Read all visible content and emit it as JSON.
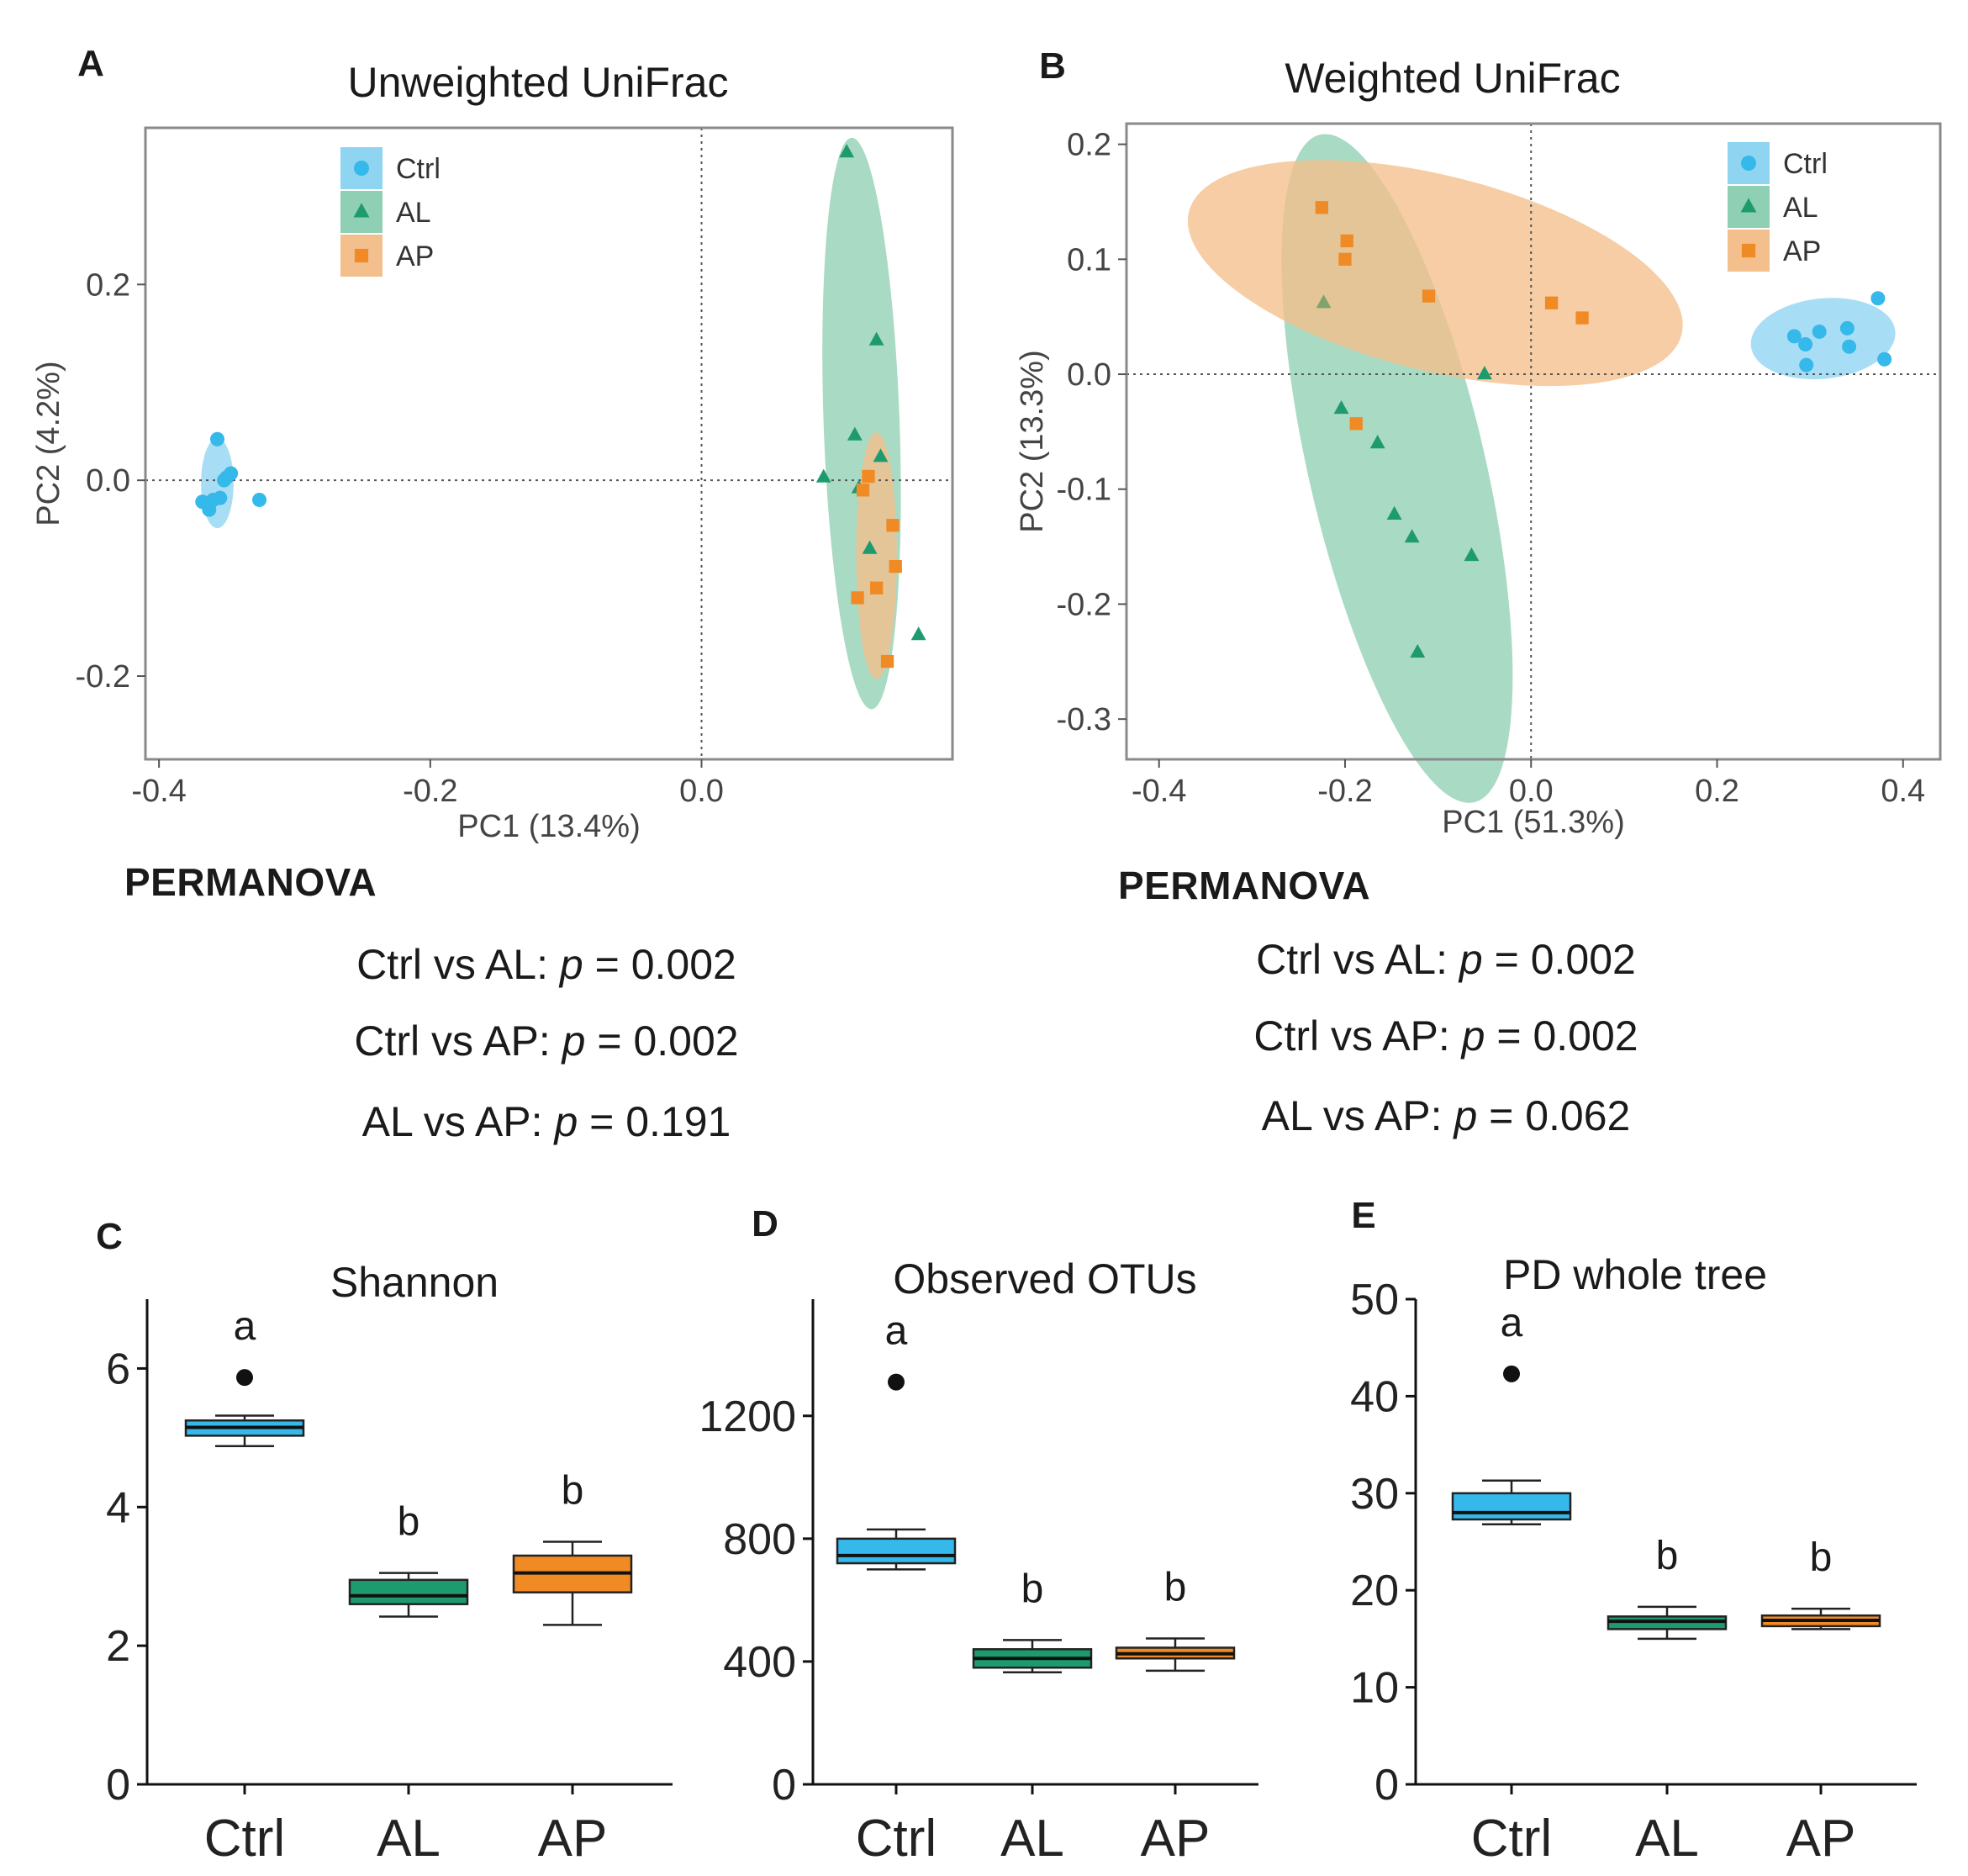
{
  "colors": {
    "ctrl": "#35b8ea",
    "al": "#1e9b6e",
    "ap": "#f08a24",
    "ctrl_fill": "#8fd5f2",
    "al_fill": "#8fcfb4",
    "ap_fill": "#f3bf8c"
  },
  "chart_data": [
    {
      "panel": "A",
      "type": "scatter",
      "title": "Unweighted UniFrac",
      "xlabel": "PC1 (13.4%)",
      "ylabel": "PC2 (4.2%)",
      "xlim": [
        -0.41,
        0.185
      ],
      "ylim": [
        -0.285,
        0.36
      ],
      "xticks": [
        -0.4,
        -0.2,
        0.0
      ],
      "xtick_labels": [
        "-0.4",
        "-0.2",
        "0.0"
      ],
      "yticks": [
        -0.2,
        0.0,
        0.2
      ],
      "ytick_labels": [
        "-0.2",
        "0.0",
        "0.2"
      ],
      "legend": [
        "Ctrl",
        "AL",
        "AP"
      ],
      "legend_position": "top-left",
      "series": [
        {
          "name": "Ctrl",
          "marker": "circle",
          "x": [
            -0.357,
            -0.35,
            -0.347,
            -0.352,
            -0.355,
            -0.36,
            -0.363,
            -0.368,
            -0.326
          ],
          "y": [
            0.042,
            0.003,
            0.007,
            0.0,
            -0.018,
            -0.02,
            -0.03,
            -0.022,
            -0.02
          ]
        },
        {
          "name": "AL",
          "marker": "triangle",
          "x": [
            0.107,
            0.129,
            0.113,
            0.09,
            0.132,
            0.116,
            0.124,
            0.16
          ],
          "y": [
            0.335,
            0.143,
            0.046,
            0.003,
            0.024,
            -0.008,
            -0.07,
            -0.158
          ]
        },
        {
          "name": "AP",
          "marker": "square",
          "x": [
            0.123,
            0.119,
            0.141,
            0.143,
            0.129,
            0.115,
            0.137
          ],
          "y": [
            0.004,
            -0.01,
            -0.046,
            -0.088,
            -0.11,
            -0.12,
            -0.185
          ]
        }
      ],
      "ellipses": [
        {
          "group": "Ctrl",
          "cx": -0.357,
          "cy": -0.003,
          "rx": 0.012,
          "ry": 0.046
        },
        {
          "group": "AL",
          "cx": 0.118,
          "cy": 0.058,
          "rx": 0.028,
          "ry": 0.292,
          "tilt_deg": -2
        },
        {
          "group": "AP",
          "cx": 0.129,
          "cy": -0.077,
          "rx": 0.015,
          "ry": 0.126
        }
      ]
    },
    {
      "panel": "B",
      "type": "scatter",
      "title": "Weighted UniFrac",
      "xlabel": "PC1 (51.3%)",
      "ylabel": "PC2 (13.3%)",
      "xlim": [
        -0.435,
        0.44
      ],
      "ylim": [
        -0.335,
        0.218
      ],
      "xticks": [
        -0.4,
        -0.2,
        0.0,
        0.2,
        0.4
      ],
      "xtick_labels": [
        "-0.4",
        "-0.2",
        "0.0",
        "0.2",
        "0.4"
      ],
      "yticks": [
        -0.3,
        -0.2,
        -0.1,
        0.0,
        0.1,
        0.2
      ],
      "ytick_labels": [
        "-0.3",
        "-0.2",
        "-0.1",
        "0.0",
        "0.1",
        "0.2"
      ],
      "legend": [
        "Ctrl",
        "AL",
        "AP"
      ],
      "legend_position": "top-right",
      "series": [
        {
          "name": "Ctrl",
          "marker": "circle",
          "x": [
            0.373,
            0.34,
            0.31,
            0.283,
            0.295,
            0.342,
            0.38,
            0.296
          ],
          "y": [
            0.066,
            0.04,
            0.037,
            0.033,
            0.026,
            0.024,
            0.013,
            0.008
          ]
        },
        {
          "name": "AL",
          "marker": "triangle",
          "x": [
            -0.223,
            -0.05,
            -0.204,
            -0.165,
            -0.147,
            -0.128,
            -0.064,
            -0.122
          ],
          "y": [
            0.062,
            0.0,
            -0.03,
            -0.06,
            -0.122,
            -0.142,
            -0.158,
            -0.242
          ]
        },
        {
          "name": "AP",
          "marker": "square",
          "x": [
            -0.225,
            -0.198,
            -0.2,
            -0.11,
            0.022,
            0.055,
            -0.188
          ],
          "y": [
            0.145,
            0.116,
            0.1,
            0.068,
            0.062,
            0.049,
            -0.043
          ]
        }
      ],
      "ellipses": [
        {
          "group": "Ctrl",
          "cx": 0.314,
          "cy": 0.031,
          "rx": 0.078,
          "ry": 0.035,
          "tilt_deg": -6
        },
        {
          "group": "AL",
          "cx": -0.144,
          "cy": -0.082,
          "rx": 0.095,
          "ry": 0.298,
          "tilt_deg": -13
        },
        {
          "group": "AP",
          "cx": -0.103,
          "cy": 0.088,
          "rx": 0.273,
          "ry": 0.085,
          "tilt_deg": 14
        }
      ]
    },
    {
      "panel": "C",
      "type": "box",
      "title": "Shannon",
      "categories": [
        "Ctrl",
        "AL",
        "AP"
      ],
      "ylim": [
        0,
        7
      ],
      "yticks": [
        0,
        2,
        4,
        6
      ],
      "boxes": [
        {
          "name": "Ctrl",
          "min": 4.88,
          "q1": 5.03,
          "median": 5.15,
          "q3": 5.25,
          "max": 5.32,
          "outliers": [
            5.87
          ],
          "letter": "a"
        },
        {
          "name": "AL",
          "min": 2.42,
          "q1": 2.6,
          "median": 2.72,
          "q3": 2.95,
          "max": 3.05,
          "outliers": [],
          "letter": "b"
        },
        {
          "name": "AP",
          "min": 2.3,
          "q1": 2.77,
          "median": 3.05,
          "q3": 3.3,
          "max": 3.5,
          "outliers": [],
          "letter": "b"
        }
      ]
    },
    {
      "panel": "D",
      "type": "box",
      "title": "Observed OTUs",
      "categories": [
        "Ctrl",
        "AL",
        "AP"
      ],
      "ylim": [
        0,
        1580
      ],
      "yticks": [
        0,
        400,
        800,
        1200
      ],
      "boxes": [
        {
          "name": "Ctrl",
          "min": 700,
          "q1": 720,
          "median": 745,
          "q3": 800,
          "max": 830,
          "outliers": [
            1310
          ],
          "letter": "a"
        },
        {
          "name": "AL",
          "min": 365,
          "q1": 380,
          "median": 410,
          "q3": 440,
          "max": 470,
          "outliers": [],
          "letter": "b"
        },
        {
          "name": "AP",
          "min": 370,
          "q1": 410,
          "median": 425,
          "q3": 445,
          "max": 475,
          "outliers": [],
          "letter": "b"
        }
      ]
    },
    {
      "panel": "E",
      "type": "box",
      "title": "PD whole tree",
      "categories": [
        "Ctrl",
        "AL",
        "AP"
      ],
      "ylim": [
        0,
        50
      ],
      "yticks": [
        0,
        10,
        20,
        30,
        40,
        50
      ],
      "boxes": [
        {
          "name": "Ctrl",
          "min": 26.8,
          "q1": 27.3,
          "median": 28.0,
          "q3": 30.0,
          "max": 31.3,
          "outliers": [
            42.3
          ],
          "letter": "a"
        },
        {
          "name": "AL",
          "min": 15.0,
          "q1": 16.0,
          "median": 16.8,
          "q3": 17.3,
          "max": 18.3,
          "outliers": [],
          "letter": "b"
        },
        {
          "name": "AP",
          "min": 16.0,
          "q1": 16.3,
          "median": 16.9,
          "q3": 17.4,
          "max": 18.1,
          "outliers": [],
          "letter": "b"
        }
      ]
    }
  ],
  "panel_labels": [
    "A",
    "B",
    "C",
    "D",
    "E"
  ],
  "permanova": {
    "left": {
      "title": "PERMANOVA",
      "lines": [
        {
          "prefix": "Ctrl vs AL: ",
          "p": "p",
          "value": " = 0.002"
        },
        {
          "prefix": "Ctrl vs AP: ",
          "p": "p",
          "value": " = 0.002"
        },
        {
          "prefix": "AL vs AP: ",
          "p": "p",
          "value": " = 0.191"
        }
      ]
    },
    "right": {
      "title": "PERMANOVA",
      "lines": [
        {
          "prefix": "Ctrl vs AL: ",
          "p": "p",
          "value": " = 0.002"
        },
        {
          "prefix": "Ctrl vs AP: ",
          "p": "p",
          "value": " = 0.002"
        },
        {
          "prefix": "AL vs AP: ",
          "p": "p",
          "value": " = 0.062"
        }
      ]
    }
  }
}
